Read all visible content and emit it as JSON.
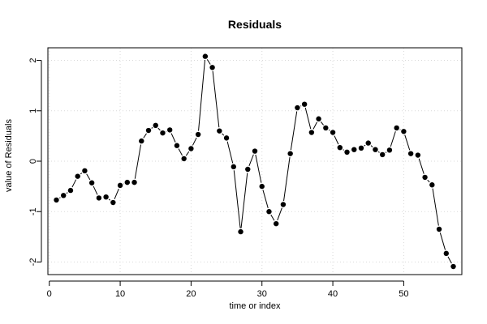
{
  "chart_data": {
    "type": "line",
    "title": "Residuals",
    "xlabel": "time or index",
    "ylabel": "value of Residuals",
    "xlim": [
      -0.2,
      58.2
    ],
    "ylim": [
      -2.25,
      2.25
    ],
    "xticks": [
      0,
      10,
      20,
      30,
      40,
      50
    ],
    "yticks": [
      -2,
      -1,
      0,
      1,
      2
    ],
    "grid": true,
    "line_color": "#000000",
    "grid_color": "#d9d9d9",
    "series": [
      {
        "x": [
          1,
          2,
          3,
          4,
          5,
          6,
          7,
          8,
          9,
          10,
          11,
          12,
          13,
          14,
          15,
          16,
          17,
          18,
          19,
          20,
          21,
          22,
          23,
          24,
          25,
          26,
          27,
          28,
          29,
          30,
          31,
          32,
          33,
          34,
          35,
          36,
          37,
          38,
          39,
          40,
          41,
          42,
          43,
          44,
          45,
          46,
          47,
          48,
          49,
          50,
          51,
          52,
          53,
          54,
          55,
          56,
          57
        ],
        "values": [
          -0.77,
          -0.68,
          -0.58,
          -0.3,
          -0.19,
          -0.43,
          -0.73,
          -0.71,
          -0.82,
          -0.48,
          -0.42,
          -0.42,
          0.4,
          0.61,
          0.71,
          0.56,
          0.62,
          0.31,
          0.05,
          0.25,
          0.53,
          2.08,
          1.86,
          0.6,
          0.46,
          -0.11,
          -1.4,
          -0.16,
          0.2,
          -0.5,
          -1.0,
          -1.24,
          -0.86,
          0.15,
          1.06,
          1.13,
          0.57,
          0.84,
          0.66,
          0.57,
          0.27,
          0.18,
          0.23,
          0.26,
          0.36,
          0.23,
          0.13,
          0.22,
          0.66,
          0.59,
          0.15,
          0.12,
          -0.32,
          -0.47,
          -1.35,
          -1.83,
          -2.09
        ]
      }
    ]
  }
}
